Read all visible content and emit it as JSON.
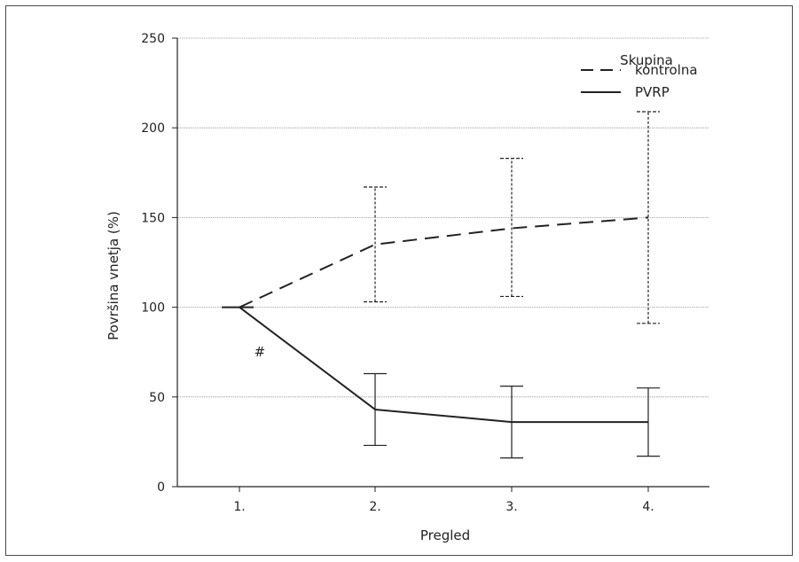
{
  "chart_data": {
    "type": "line",
    "categories": [
      "1.",
      "2.",
      "3.",
      "4."
    ],
    "xlabel": "Pregled",
    "ylabel": "Površina vnetja (%)",
    "ylim": [
      0,
      250
    ],
    "yticks": [
      0,
      50,
      100,
      150,
      200,
      250
    ],
    "grid": "horizontal",
    "legend": {
      "title": "Skupina",
      "placement": "top-right"
    },
    "series": [
      {
        "name": "kontrolna",
        "line_style": "dashed",
        "error_style": "dotted",
        "color": "#222222",
        "values": [
          100,
          135,
          144,
          150
        ],
        "error_low": [
          100,
          103,
          106,
          91
        ],
        "error_high": [
          100,
          167,
          183,
          209
        ]
      },
      {
        "name": "PVRP",
        "line_style": "solid",
        "error_style": "solid",
        "color": "#222222",
        "values": [
          100,
          43,
          36,
          36
        ],
        "error_low": [
          100,
          23,
          16,
          17
        ],
        "error_high": [
          100,
          63,
          56,
          55
        ]
      }
    ],
    "annotations": [
      {
        "text": "#",
        "x": 1.15,
        "y": 75
      }
    ]
  }
}
